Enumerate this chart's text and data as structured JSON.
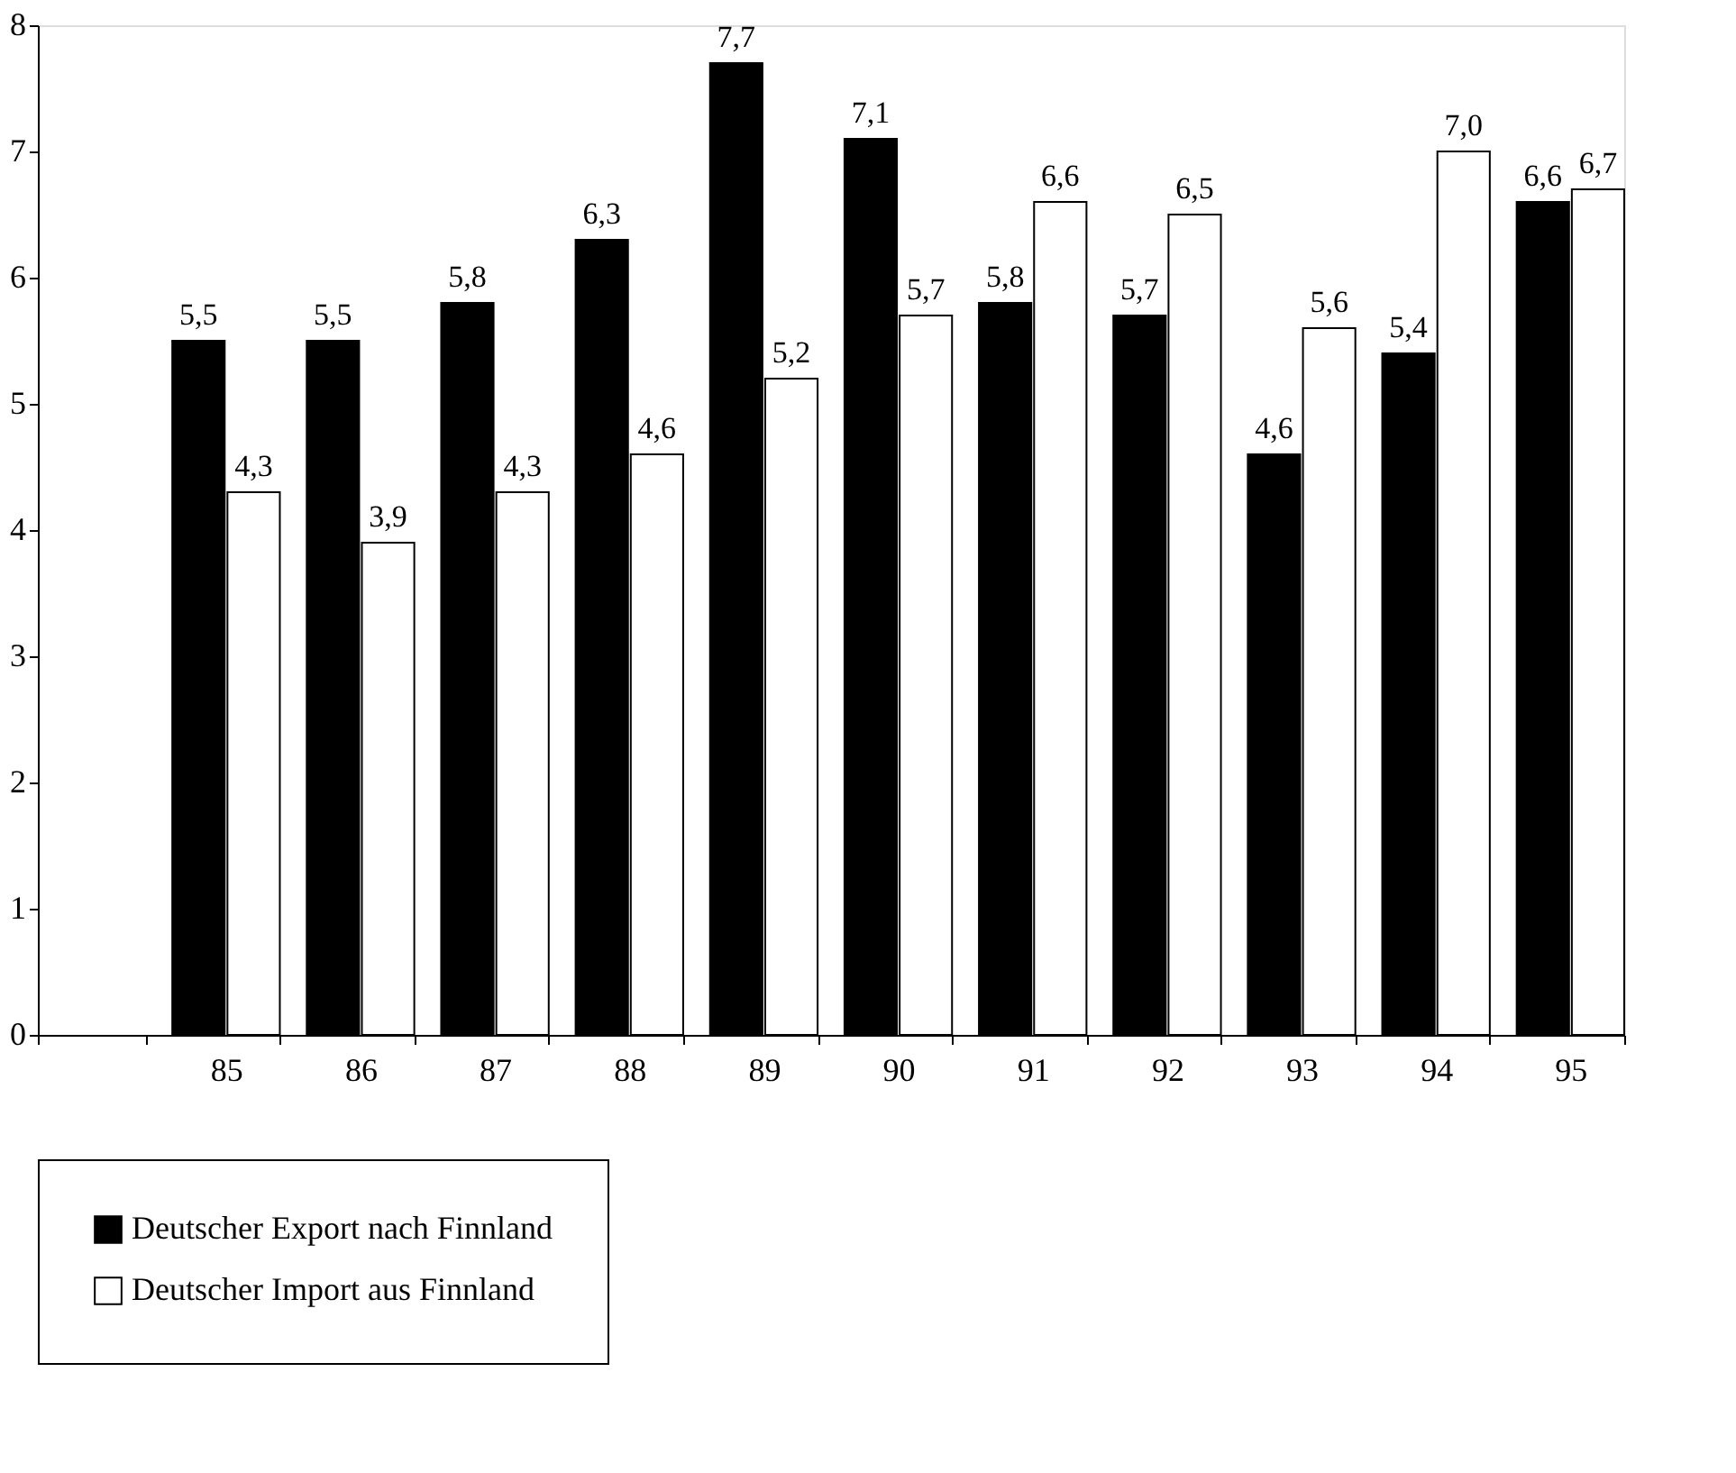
{
  "chart_data": {
    "type": "bar",
    "categories": [
      null,
      "85",
      "86",
      "87",
      "88",
      "89",
      "90",
      "91",
      "92",
      "93",
      "94",
      "95"
    ],
    "series": [
      {
        "name": "Deutscher Export nach Finnland",
        "color": "#000000",
        "values": [
          null,
          5.5,
          5.5,
          5.8,
          6.3,
          7.7,
          7.1,
          5.8,
          5.7,
          4.6,
          5.4,
          6.6
        ],
        "value_labels": [
          null,
          "5,5",
          "5,5",
          "5,8",
          "6,3",
          "7,7",
          "7,1",
          "5,8",
          "5,7",
          "4,6",
          "5,4",
          "6,6"
        ]
      },
      {
        "name": "Deutscher Import aus Finnland",
        "color": "#ffffff",
        "values": [
          null,
          4.3,
          3.9,
          4.3,
          4.6,
          5.2,
          5.7,
          6.6,
          6.5,
          5.6,
          7.0,
          6.7
        ],
        "value_labels": [
          null,
          "4,3",
          "3,9",
          "4,3",
          "4,6",
          "5,2",
          "5,7",
          "6,6",
          "6,5",
          "5,6",
          "7,0",
          "6,7"
        ]
      }
    ],
    "ylim": [
      0,
      8
    ],
    "yticks": [
      0,
      1,
      2,
      3,
      4,
      5,
      6,
      7,
      8
    ],
    "grid": false,
    "legend": "bottom"
  }
}
